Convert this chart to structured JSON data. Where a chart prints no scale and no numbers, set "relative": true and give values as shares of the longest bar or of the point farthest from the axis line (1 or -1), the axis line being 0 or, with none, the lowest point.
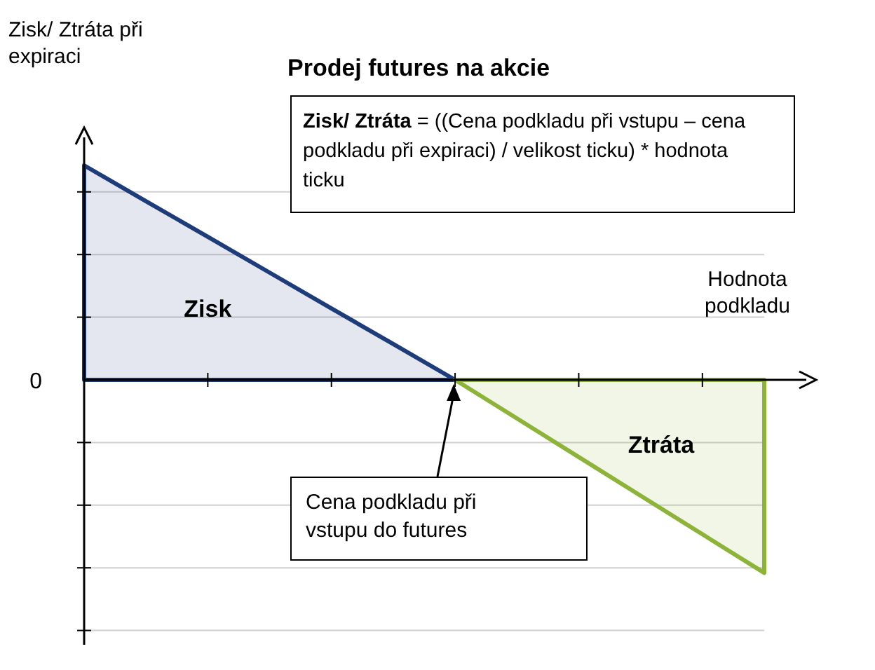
{
  "chart_data": {
    "type": "area",
    "title": "Prodej futures na akcie",
    "xlabel": "Hodnota podkladu",
    "ylabel": "Zisk/ Ztráta při expiraci",
    "relative": true,
    "grid": "y",
    "categories": [
      null,
      null,
      null,
      null,
      null,
      null,
      null,
      null,
      null,
      null,
      null,
      null
    ],
    "series": [
      {
        "name": "Zisk",
        "color": "#1f3c7a",
        "values": [
          1,
          0.833,
          0.667,
          0.5,
          0.333,
          0.167,
          0,
          null,
          null,
          null,
          null,
          null
        ]
      },
      {
        "name": "Ztráta",
        "color": "#8db33a",
        "values": [
          null,
          null,
          null,
          null,
          null,
          null,
          0,
          -0.18,
          -0.36,
          -0.54,
          -0.72,
          -0.9
        ]
      }
    ],
    "annotations": [
      "Zisk/ Ztráta = ((Cena podkladu při vstupu – cena podkladu při expiraci) / velikost ticku) * hodnota ticku",
      "Cena podkladu při vstupu do futures",
      "0"
    ]
  }
}
